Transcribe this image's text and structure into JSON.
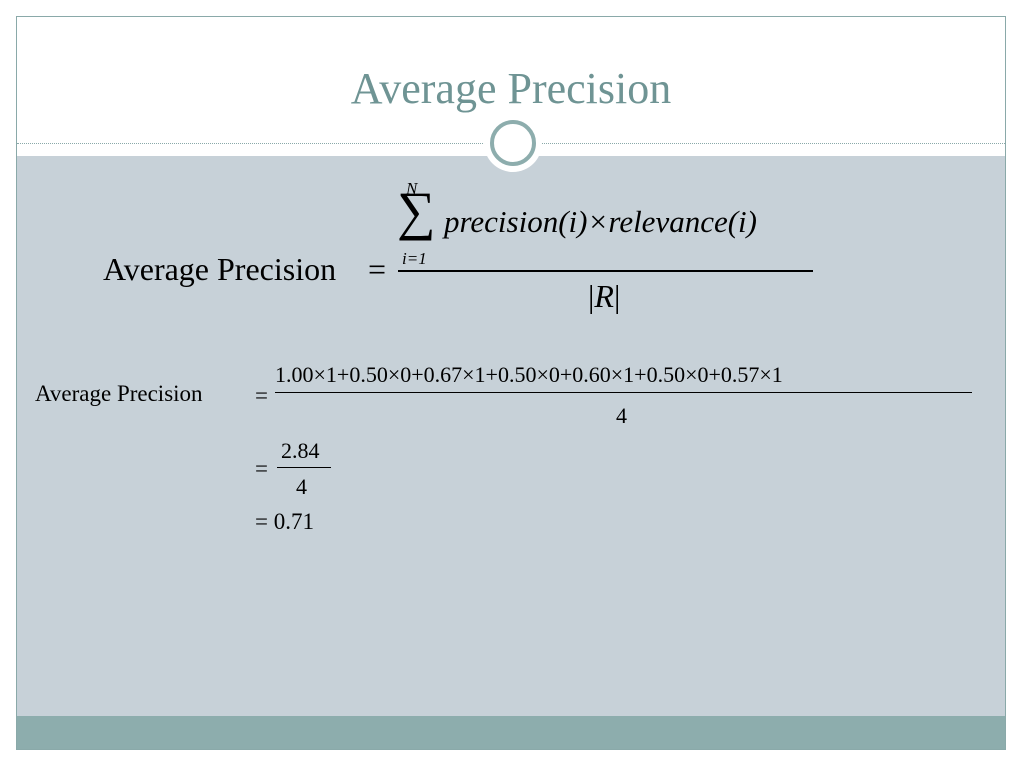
{
  "slide": {
    "title": "Average Precision"
  },
  "formula_main": {
    "label": "Average Precision",
    "equals": "=",
    "sum_upper": "N",
    "sum_symbol": "∑",
    "sum_lower": "i=1",
    "numerator": "precision(i)×relevance(i)",
    "denominator": "R"
  },
  "example": {
    "label": "Average Precision",
    "line1_equals": "=",
    "line1_numerator": "1.00×1+0.50×0+0.67×1+0.50×0+0.60×1+0.50×0+0.57×1",
    "line1_denominator": "4",
    "line2_equals": "=",
    "line2_numerator": "2.84",
    "line2_denominator": "4",
    "line3": "= 0.71"
  }
}
